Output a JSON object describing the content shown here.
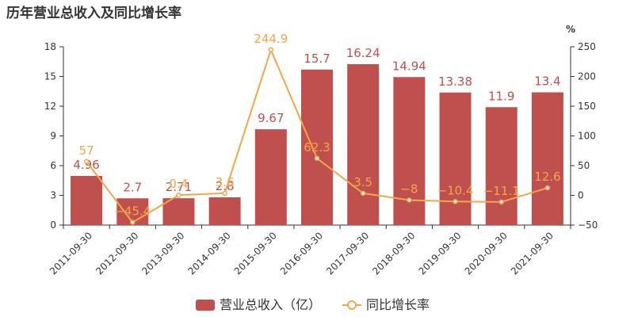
{
  "title": "历年营业总收入及同比增长率",
  "chart_data": {
    "type": "bar",
    "categories": [
      "2011-09-30",
      "2012-09-30",
      "2013-09-30",
      "2014-09-30",
      "2015-09-30",
      "2016-09-30",
      "2017-09-30",
      "2018-09-30",
      "2019-09-30",
      "2020-09-30",
      "2021-09-30"
    ],
    "series": [
      {
        "name": "营业总收入（亿）",
        "type": "bar",
        "values": [
          4.96,
          2.7,
          2.71,
          2.8,
          9.67,
          15.7,
          16.24,
          14.94,
          13.38,
          11.9,
          13.4
        ],
        "labels": [
          "4.96",
          "2.7",
          "2.71",
          "2.8",
          "9.67",
          "15.7",
          "16.24",
          "14.94",
          "13.38",
          "11.9",
          "13.4"
        ],
        "color": "#c0504d"
      },
      {
        "name": "同比增长率",
        "type": "line",
        "values": [
          57,
          -45.4,
          0.4,
          3.6,
          244.9,
          62.3,
          3.5,
          -8,
          -10.4,
          -11.1,
          12.6
        ],
        "labels": [
          "57",
          "−45.4",
          "0.4",
          "3.6",
          "244.9",
          "62.3",
          "3.5",
          "−8",
          "−10.4",
          "−11.1",
          "12.6"
        ],
        "color": "#f5a54a"
      }
    ],
    "y_left": {
      "ticks": [
        "0",
        "3",
        "6",
        "9",
        "12",
        "15",
        "18"
      ],
      "range": [
        0,
        18
      ]
    },
    "y_right": {
      "unit": "%",
      "ticks": [
        "−50",
        "0",
        "50",
        "100",
        "150",
        "200",
        "250"
      ],
      "range": [
        -50,
        250
      ]
    },
    "grid": false,
    "legend": "bottom-center"
  }
}
